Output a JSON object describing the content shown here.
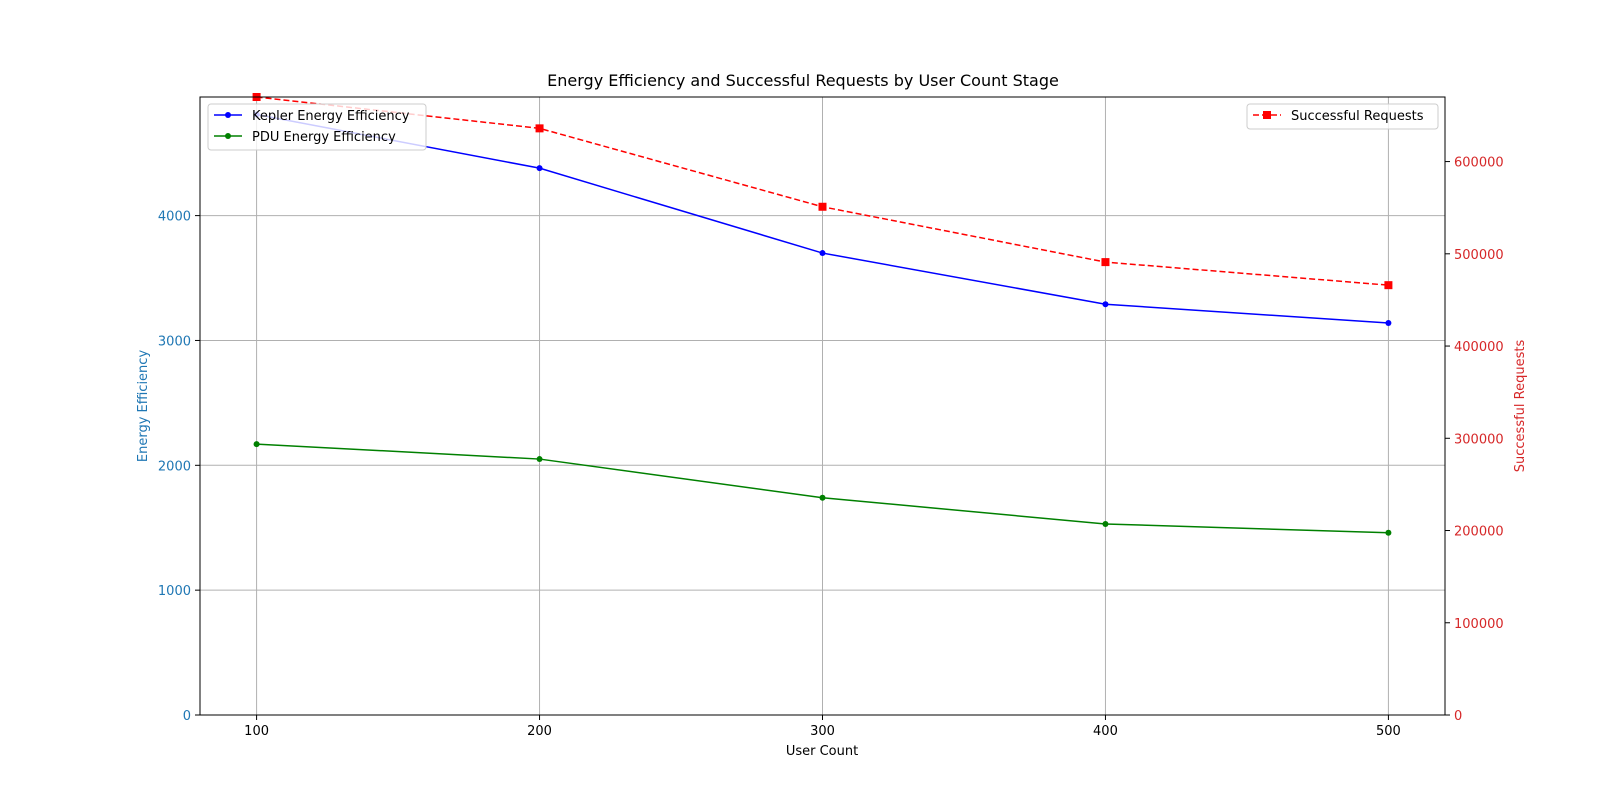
{
  "chart_data": {
    "type": "line",
    "title": "Energy Efficiency and Successful Requests by User Count Stage",
    "xlabel": "User Count",
    "ylabel_left": "Energy Efficiency",
    "ylabel_right": "Successful Requests",
    "x": [
      100,
      200,
      300,
      400,
      500
    ],
    "xlim": [
      80,
      520
    ],
    "ylim_left": [
      0,
      4950
    ],
    "ylim_right": [
      0,
      670000
    ],
    "x_ticks": [
      100,
      200,
      300,
      400,
      500
    ],
    "y_ticks_left": [
      0,
      1000,
      2000,
      3000,
      4000
    ],
    "y_ticks_right": [
      0,
      100000,
      200000,
      300000,
      400000,
      500000,
      600000
    ],
    "grid": true,
    "left_axis_color": "#1f77b4",
    "right_axis_color": "#d62728",
    "series": [
      {
        "name": "Kepler Energy Efficiency",
        "axis": "left",
        "values": [
          4810,
          4380,
          3700,
          3290,
          3140
        ],
        "color": "#0000ff",
        "style": "solid",
        "marker": "circle"
      },
      {
        "name": "PDU Energy Efficiency",
        "axis": "left",
        "values": [
          2170,
          2050,
          1740,
          1530,
          1460
        ],
        "color": "#008000",
        "style": "solid",
        "marker": "circle"
      },
      {
        "name": "Successful Requests",
        "axis": "right",
        "values": [
          670000,
          636000,
          551000,
          491000,
          466000
        ],
        "color": "#ff0000",
        "style": "dashed",
        "marker": "square"
      }
    ],
    "legend_left": {
      "placement": "top-left",
      "entries": [
        "Kepler Energy Efficiency",
        "PDU Energy Efficiency"
      ]
    },
    "legend_right": {
      "placement": "top-right",
      "entries": [
        "Successful Requests"
      ]
    }
  }
}
